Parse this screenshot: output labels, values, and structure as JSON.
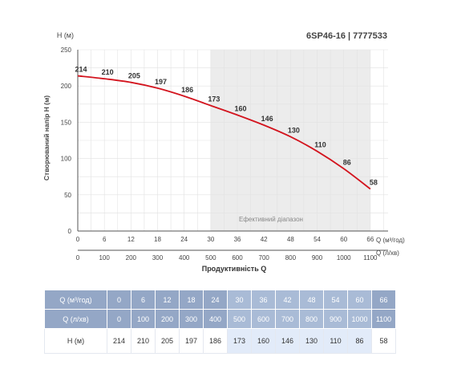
{
  "chart_data": {
    "type": "line",
    "title": "6SP46-16 | 7777533",
    "ylabel": "Створюваний напір H (м)",
    "yunit": "H (м)",
    "xlabel": "Продуктивність Q",
    "x1unit": "Q (м³/год)",
    "x2unit": "Q (л/хв)",
    "ylim": [
      0,
      250
    ],
    "yticks": [
      "0",
      "50",
      "100",
      "150",
      "200",
      "250"
    ],
    "xlim": [
      0,
      70
    ],
    "x1ticks": [
      0,
      6,
      12,
      18,
      24,
      30,
      36,
      42,
      48,
      54,
      60,
      66
    ],
    "x2ticks": [
      0,
      100,
      200,
      300,
      400,
      500,
      600,
      700,
      800,
      900,
      1000,
      1100
    ],
    "efficient_range": {
      "from": 30,
      "to": 66,
      "label": "Ефективний діапазон"
    },
    "series": [
      {
        "x": [
          0,
          6,
          12,
          18,
          24,
          30,
          36,
          42,
          48,
          54,
          60,
          66
        ],
        "values": [
          214,
          210,
          205,
          197,
          186,
          173,
          160,
          146,
          130,
          110,
          86,
          58
        ],
        "color": "#d3141e"
      }
    ],
    "grid": true
  },
  "table": {
    "rows": [
      {
        "head": "Q (м³/год)",
        "cells": [
          "0",
          "6",
          "12",
          "18",
          "24",
          "30",
          "36",
          "42",
          "48",
          "54",
          "60",
          "66"
        ]
      },
      {
        "head": "Q (л/хв)",
        "cells": [
          "0",
          "100",
          "200",
          "300",
          "400",
          "500",
          "600",
          "700",
          "800",
          "900",
          "1000",
          "1100"
        ]
      },
      {
        "head": "H (м)",
        "cells": [
          "214",
          "210",
          "205",
          "197",
          "186",
          "173",
          "160",
          "146",
          "130",
          "110",
          "86",
          "58"
        ]
      }
    ]
  },
  "colors": {
    "curve": "#d3141e",
    "header": "#94a7c6",
    "highlight": "#e2ebf9"
  }
}
